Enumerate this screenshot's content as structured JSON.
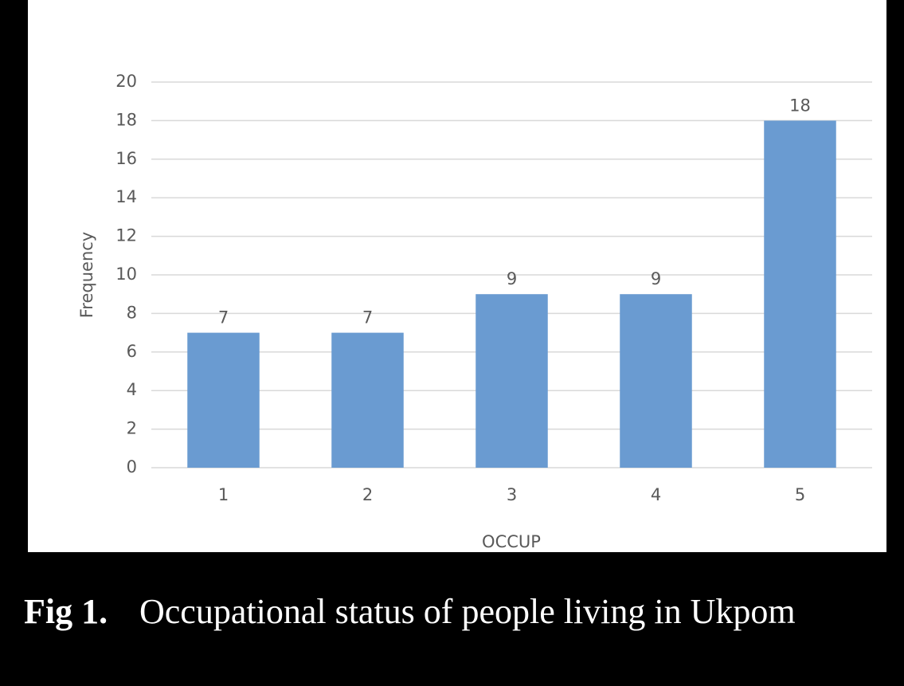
{
  "chart_data": {
    "type": "bar",
    "caption_label": "Fig 1.",
    "caption": "Occupational status of people living in Ukpom",
    "x_label": "OCCUP",
    "y_label": "Frequency",
    "categories": [
      "1",
      "2",
      "3",
      "4",
      "5"
    ],
    "values": [
      7,
      7,
      9,
      9,
      18
    ],
    "color": "#6a9bd1",
    "ylim": [
      0,
      20
    ],
    "yticks": [
      0,
      2,
      4,
      6,
      8,
      10,
      12,
      14,
      16,
      18,
      20
    ],
    "grid": true
  }
}
